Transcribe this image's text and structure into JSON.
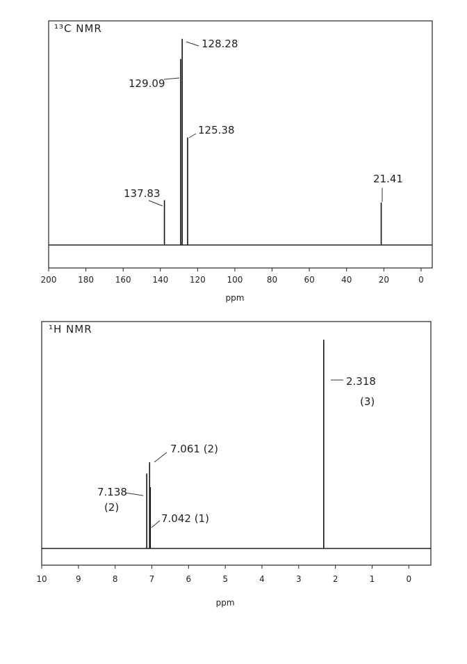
{
  "chart_data": [
    {
      "type": "spectrum",
      "title": "¹³C NMR",
      "x_label": "ppm",
      "x": [
        137.83,
        129.09,
        128.28,
        125.38,
        21.41
      ],
      "values": [
        20,
        83,
        92,
        48,
        19
      ],
      "color": "#111111",
      "xlim": [
        200,
        -6
      ],
      "ylim": [
        0,
        100
      ],
      "xticks": [
        200,
        180,
        160,
        140,
        120,
        100,
        80,
        60,
        40,
        20,
        0
      ]
    },
    {
      "type": "spectrum",
      "title": "¹H NMR",
      "x_label": "ppm",
      "x": [
        7.138,
        7.061,
        7.042,
        2.318
      ],
      "values": [
        33,
        38,
        27,
        92
      ],
      "color": "#111111",
      "xlim": [
        10,
        -0.6
      ],
      "ylim": [
        0,
        100
      ],
      "xticks": [
        10,
        9,
        8,
        7,
        6,
        5,
        4,
        3,
        2,
        1,
        0
      ],
      "annotations": [
        "7.138",
        "(2)",
        "7.061 (2)",
        "7.042 (1)",
        "2.318",
        "(3)"
      ]
    }
  ]
}
